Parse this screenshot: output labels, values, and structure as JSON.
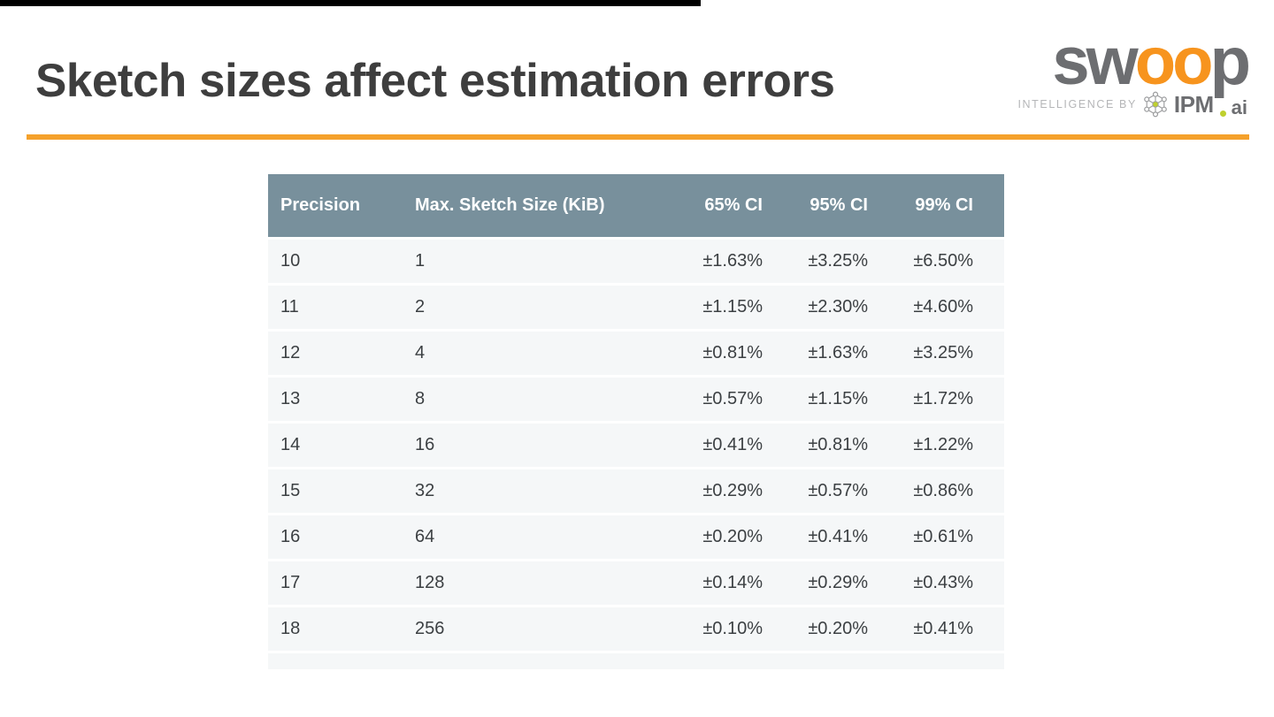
{
  "slide": {
    "title": "Sketch sizes affect estimation errors",
    "accent_color": "#f5a12b",
    "background_color": "#ffffff"
  },
  "logo": {
    "word_prefix": "sw",
    "word_mid": "oo",
    "word_suffix": "p",
    "tagline": "INTELLIGENCE BY",
    "brand": "IPM",
    "brand_suffix": "ai",
    "icon": "network-molecule-icon",
    "colors": {
      "letter_gray": "#6d6e71",
      "letter_orange": "#f7941e",
      "tagline_gray": "#b5b6b8",
      "dot_green": "#bfd02e"
    }
  },
  "table": {
    "header_bg": "#78909c",
    "header_text_color": "#ffffff",
    "row_bg": "#f5f7f8",
    "cell_text_color": "#3c4043",
    "headers": [
      "Precision",
      "Max. Sketch Size (KiB)",
      "65% CI",
      "95% CI",
      "99% CI"
    ],
    "rows": [
      [
        "10",
        "1",
        "±1.63%",
        "±3.25%",
        "±6.50%"
      ],
      [
        "11",
        "2",
        "±1.15%",
        "±2.30%",
        "±4.60%"
      ],
      [
        "12",
        "4",
        "±0.81%",
        "±1.63%",
        "±3.25%"
      ],
      [
        "13",
        "8",
        "±0.57%",
        "±1.15%",
        "±1.72%"
      ],
      [
        "14",
        "16",
        "±0.41%",
        "±0.81%",
        "±1.22%"
      ],
      [
        "15",
        "32",
        "±0.29%",
        "±0.57%",
        "±0.86%"
      ],
      [
        "16",
        "64",
        "±0.20%",
        "±0.41%",
        "±0.61%"
      ],
      [
        "17",
        "128",
        "±0.14%",
        "±0.29%",
        "±0.43%"
      ],
      [
        "18",
        "256",
        "±0.10%",
        "±0.20%",
        "±0.41%"
      ]
    ]
  },
  "chart_data": {
    "type": "table",
    "title": "Sketch sizes affect estimation errors",
    "columns": [
      "Precision",
      "Max. Sketch Size (KiB)",
      "65% CI",
      "95% CI",
      "99% CI"
    ],
    "rows": [
      [
        10,
        1,
        "±1.63%",
        "±3.25%",
        "±6.50%"
      ],
      [
        11,
        2,
        "±1.15%",
        "±2.30%",
        "±4.60%"
      ],
      [
        12,
        4,
        "±0.81%",
        "±1.63%",
        "±3.25%"
      ],
      [
        13,
        8,
        "±0.57%",
        "±1.15%",
        "±1.72%"
      ],
      [
        14,
        16,
        "±0.41%",
        "±0.81%",
        "±1.22%"
      ],
      [
        15,
        32,
        "±0.29%",
        "±0.57%",
        "±0.86%"
      ],
      [
        16,
        64,
        "±0.20%",
        "±0.41%",
        "±0.61%"
      ],
      [
        17,
        128,
        "±0.14%",
        "±0.29%",
        "±0.43%"
      ],
      [
        18,
        256,
        "±0.10%",
        "±0.20%",
        "±0.41%"
      ]
    ]
  }
}
